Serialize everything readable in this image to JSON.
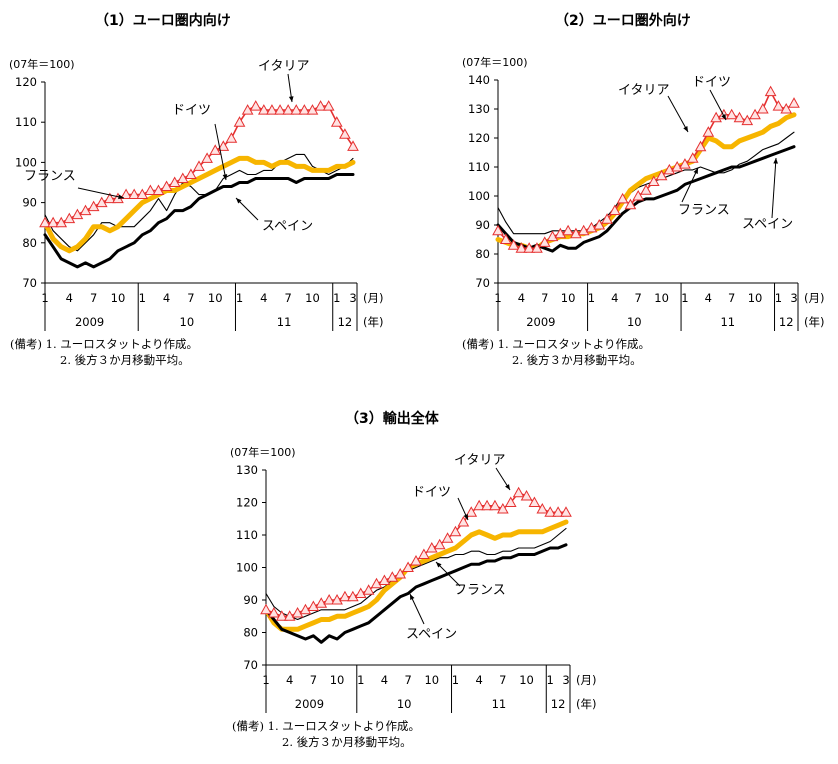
{
  "chart_data": [
    {
      "type": "line",
      "title": "（1）ユーロ圏内向け",
      "ylabel": "(07年＝100)",
      "ylim": [
        70,
        120
      ],
      "yticks": [
        70,
        80,
        90,
        100,
        110,
        120
      ],
      "x_month_ticks": [
        "1",
        "4",
        "7",
        "10",
        "1",
        "4",
        "7",
        "10",
        "1",
        "4",
        "7",
        "10",
        "1",
        "3"
      ],
      "x_year_labels": [
        "2009",
        "10",
        "11",
        "12"
      ],
      "x_unit_month": "(月)",
      "x_unit_year": "(年)",
      "n_points": 39,
      "series": [
        {
          "name": "スペイン",
          "color": "#e53030",
          "style": "triangle",
          "values": [
            85,
            85,
            85,
            86,
            87,
            88,
            89,
            90,
            91,
            91,
            92,
            92,
            92,
            93,
            93,
            94,
            95,
            96,
            97,
            99,
            101,
            103,
            104,
            106,
            110,
            113,
            114,
            113,
            113,
            113,
            113,
            113,
            113,
            113,
            114,
            114,
            110,
            107,
            104
          ]
        },
        {
          "name": "ドイツ",
          "color": "#f7b500",
          "style": "thick",
          "values": [
            85,
            81,
            79,
            78,
            79,
            81,
            84,
            84,
            83,
            84,
            86,
            88,
            90,
            91,
            92,
            93,
            93,
            94,
            95,
            96,
            97,
            98,
            99,
            100,
            101,
            101,
            100,
            100,
            99,
            100,
            100,
            99,
            99,
            98,
            98,
            98,
            99,
            99,
            100
          ]
        },
        {
          "name": "フランス",
          "color": "#000000",
          "style": "thin",
          "values": [
            87,
            83,
            81,
            79,
            78,
            80,
            82,
            85,
            85,
            84,
            84,
            84,
            86,
            88,
            91,
            88,
            92,
            95,
            94,
            92,
            92,
            93,
            96,
            97,
            98,
            97,
            97,
            98,
            98,
            100,
            101,
            102,
            102,
            99,
            98,
            97,
            98,
            99,
            101
          ]
        },
        {
          "name": "イタリア",
          "color": "#000000",
          "style": "bold",
          "values": [
            82,
            79,
            76,
            75,
            74,
            75,
            74,
            75,
            76,
            78,
            79,
            80,
            82,
            83,
            85,
            86,
            88,
            88,
            89,
            91,
            92,
            93,
            94,
            94,
            95,
            95,
            96,
            96,
            96,
            96,
            96,
            95,
            96,
            96,
            96,
            96,
            97,
            97,
            97
          ]
        }
      ],
      "annotations": [
        "スペイン",
        "ドイツ",
        "フランス",
        "イタリア"
      ]
    },
    {
      "type": "line",
      "title": "（2）ユーロ圏外向け",
      "ylabel": "(07年＝100)",
      "ylim": [
        70,
        140
      ],
      "yticks": [
        70,
        80,
        90,
        100,
        110,
        120,
        130,
        140
      ],
      "x_month_ticks": [
        "1",
        "4",
        "7",
        "10",
        "1",
        "4",
        "7",
        "10",
        "1",
        "4",
        "7",
        "10",
        "1",
        "3"
      ],
      "x_year_labels": [
        "2009",
        "10",
        "11",
        "12"
      ],
      "x_unit_month": "(月)",
      "x_unit_year": "(年)",
      "n_points": 39,
      "series": [
        {
          "name": "スペイン",
          "color": "#e53030",
          "style": "triangle",
          "values": [
            88,
            85,
            83,
            82,
            82,
            82,
            84,
            86,
            87,
            88,
            87,
            88,
            89,
            90,
            92,
            95,
            99,
            97,
            100,
            102,
            105,
            107,
            109,
            110,
            111,
            113,
            117,
            122,
            127,
            128,
            128,
            127,
            126,
            128,
            130,
            136,
            131,
            130,
            132
          ]
        },
        {
          "name": "ドイツ",
          "color": "#f7b500",
          "style": "thick",
          "values": [
            85,
            84,
            83,
            83,
            82,
            82,
            84,
            85,
            86,
            86,
            87,
            87,
            88,
            89,
            91,
            94,
            98,
            102,
            104,
            106,
            107,
            108,
            109,
            110,
            111,
            112,
            116,
            120,
            119,
            117,
            117,
            119,
            120,
            121,
            122,
            124,
            125,
            127,
            128
          ]
        },
        {
          "name": "フランス",
          "color": "#000000",
          "style": "thin",
          "values": [
            96,
            91,
            87,
            87,
            87,
            87,
            87,
            88,
            88,
            88,
            88,
            88,
            89,
            91,
            93,
            96,
            100,
            101,
            103,
            104,
            105,
            106,
            107,
            108,
            109,
            109,
            110,
            109,
            108,
            108,
            109,
            111,
            112,
            114,
            116,
            117,
            118,
            120,
            122
          ]
        },
        {
          "name": "イタリア",
          "color": "#000000",
          "style": "bold",
          "values": [
            90,
            87,
            84,
            83,
            82,
            83,
            82,
            81,
            83,
            82,
            82,
            84,
            85,
            86,
            88,
            91,
            94,
            96,
            98,
            99,
            99,
            100,
            101,
            102,
            104,
            105,
            106,
            107,
            108,
            109,
            110,
            110,
            111,
            112,
            113,
            114,
            115,
            116,
            117
          ]
        }
      ],
      "annotations": [
        "スペイン",
        "ドイツ",
        "フランス",
        "イタリア"
      ]
    },
    {
      "type": "line",
      "title": "（3）輸出全体",
      "ylabel": "(07年＝100)",
      "ylim": [
        70,
        130
      ],
      "yticks": [
        70,
        80,
        90,
        100,
        110,
        120,
        130
      ],
      "x_month_ticks": [
        "1",
        "4",
        "7",
        "10",
        "1",
        "4",
        "7",
        "10",
        "1",
        "4",
        "7",
        "10",
        "1",
        "3"
      ],
      "x_year_labels": [
        "2009",
        "10",
        "11",
        "12"
      ],
      "x_unit_month": "(月)",
      "x_unit_year": "(年)",
      "n_points": 39,
      "series": [
        {
          "name": "スペイン",
          "color": "#e53030",
          "style": "triangle",
          "values": [
            87,
            86,
            85,
            85,
            86,
            87,
            88,
            89,
            90,
            90,
            91,
            91,
            92,
            93,
            95,
            96,
            97,
            98,
            100,
            102,
            104,
            106,
            107,
            109,
            111,
            114,
            117,
            119,
            119,
            119,
            118,
            120,
            123,
            122,
            120,
            118,
            117,
            117,
            117
          ]
        },
        {
          "name": "ドイツ",
          "color": "#f7b500",
          "style": "thick",
          "values": [
            87,
            83,
            81,
            81,
            81,
            82,
            83,
            84,
            84,
            85,
            85,
            86,
            87,
            88,
            90,
            93,
            95,
            97,
            100,
            101,
            102,
            103,
            104,
            105,
            106,
            108,
            110,
            111,
            110,
            109,
            110,
            110,
            111,
            111,
            111,
            111,
            112,
            113,
            114
          ]
        },
        {
          "name": "フランス",
          "color": "#000000",
          "style": "thin",
          "values": [
            92,
            88,
            86,
            85,
            84,
            85,
            86,
            87,
            87,
            87,
            87,
            88,
            89,
            91,
            93,
            94,
            96,
            98,
            99,
            100,
            101,
            102,
            103,
            103,
            104,
            104,
            105,
            105,
            104,
            104,
            105,
            105,
            106,
            106,
            106,
            107,
            108,
            110,
            112
          ]
        },
        {
          "name": "イタリア",
          "color": "#000000",
          "style": "bold",
          "values": [
            87,
            84,
            81,
            80,
            79,
            78,
            79,
            77,
            79,
            78,
            80,
            81,
            82,
            83,
            85,
            87,
            89,
            91,
            92,
            94,
            95,
            96,
            97,
            98,
            99,
            100,
            101,
            101,
            102,
            102,
            103,
            103,
            104,
            104,
            104,
            105,
            106,
            106,
            107
          ]
        }
      ],
      "annotations": [
        "スペイン",
        "ドイツ",
        "フランス",
        "イタリア"
      ]
    }
  ],
  "notes": [
    {
      "line1": "(備考) 1. ユーロスタットより作成。",
      "line2": "2. 後方３か月移動平均。"
    },
    {
      "line1": "(備考) 1. ユーロスタットより作成。",
      "line2": "2. 後方３か月移動平均。"
    },
    {
      "line1": "(備考) 1. ユーロスタットより作成。",
      "line2": "2. 後方３か月移動平均。"
    }
  ]
}
